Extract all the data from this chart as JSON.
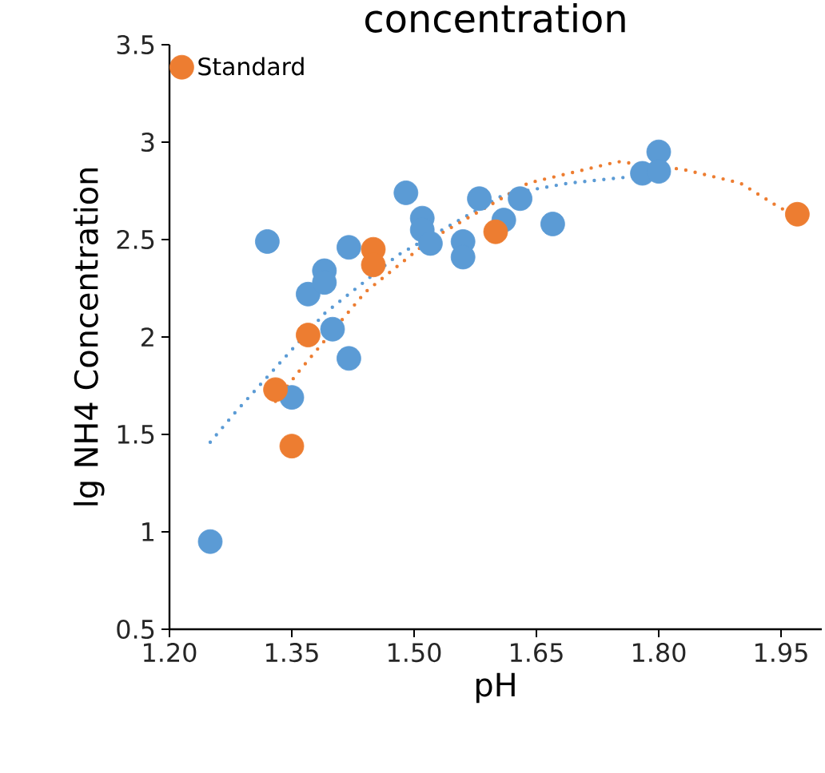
{
  "chart_data": {
    "type": "scatter",
    "title": "concentration",
    "xlabel": "pH",
    "ylabel": "lg NH4 Concentration",
    "xlim": [
      1.2,
      2.0
    ],
    "ylim": [
      0.5,
      3.5
    ],
    "xticks": [
      {
        "value": 1.2,
        "label": "1.20"
      },
      {
        "value": 1.35,
        "label": "1.35"
      },
      {
        "value": 1.5,
        "label": "1.50"
      },
      {
        "value": 1.65,
        "label": "1.65"
      },
      {
        "value": 1.8,
        "label": "1.80"
      },
      {
        "value": 1.95,
        "label": "1.95"
      }
    ],
    "yticks": [
      0.5,
      1,
      1.5,
      2,
      2.5,
      3,
      3.5
    ],
    "legend": "top left",
    "grid": false,
    "marker": "circle",
    "series": [
      {
        "color": "#5b9bd5",
        "x": [
          1.25,
          1.32,
          1.35,
          1.37,
          1.39,
          1.39,
          1.4,
          1.42,
          1.42,
          1.49,
          1.51,
          1.51,
          1.52,
          1.56,
          1.56,
          1.58,
          1.61,
          1.63,
          1.67,
          1.78,
          1.8,
          1.8
        ],
        "values": [
          0.95,
          2.49,
          1.69,
          2.22,
          2.34,
          2.28,
          2.04,
          1.89,
          2.46,
          2.74,
          2.61,
          2.55,
          2.48,
          2.49,
          2.41,
          2.71,
          2.6,
          2.71,
          2.58,
          2.84,
          2.95,
          2.85
        ]
      },
      {
        "name": "Standard",
        "color": "#ed7d31",
        "x": [
          1.33,
          1.35,
          1.37,
          1.45,
          1.45,
          1.6,
          1.97
        ],
        "values": [
          1.73,
          1.44,
          2.01,
          2.45,
          2.37,
          2.54,
          2.63
        ]
      },
      {
        "type": "line",
        "color": "#5b9bd5",
        "line_style": "dotted",
        "marker": "none",
        "x": [
          1.25,
          1.28,
          1.39,
          1.48,
          1.61,
          1.69,
          1.76,
          1.8
        ],
        "values": [
          1.46,
          1.61,
          2.12,
          2.42,
          2.73,
          2.79,
          2.82,
          2.85
        ]
      },
      {
        "type": "line",
        "color": "#ed7d31",
        "line_style": "dotted",
        "marker": "none",
        "x": [
          1.33,
          1.36,
          1.44,
          1.52,
          1.64,
          1.75,
          1.83,
          1.9,
          1.95,
          1.97
        ],
        "values": [
          1.67,
          1.83,
          2.23,
          2.5,
          2.79,
          2.9,
          2.86,
          2.79,
          2.66,
          2.63
        ]
      }
    ]
  }
}
